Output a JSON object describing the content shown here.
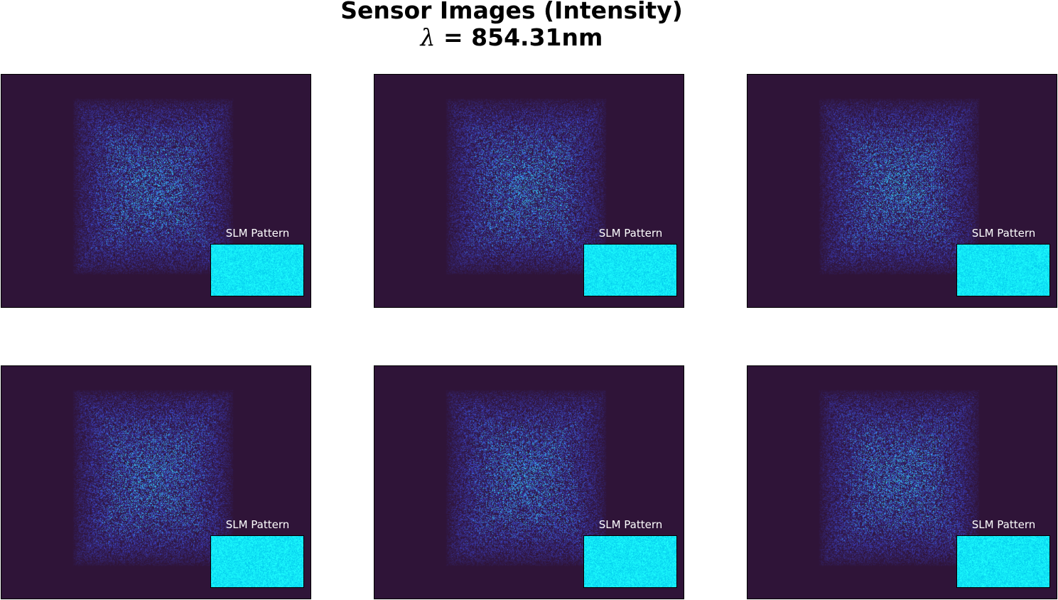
{
  "figure": {
    "title_line1": "Sensor Images (Intensity)",
    "lambda_symbol": "λ",
    "title_line2_rest": " = 854.31nm"
  },
  "colors": {
    "background": "#2f1438",
    "inset_fill": "#12e6f6",
    "speckle_low": "#2f1438",
    "speckle_mid": "#3b3fc4",
    "speckle_high": "#35c4e8"
  },
  "panels": [
    {
      "inset_label": "SLM Pattern"
    },
    {
      "inset_label": "SLM Pattern"
    },
    {
      "inset_label": "SLM Pattern"
    },
    {
      "inset_label": "SLM Pattern"
    },
    {
      "inset_label": "SLM Pattern"
    },
    {
      "inset_label": "SLM Pattern"
    }
  ]
}
